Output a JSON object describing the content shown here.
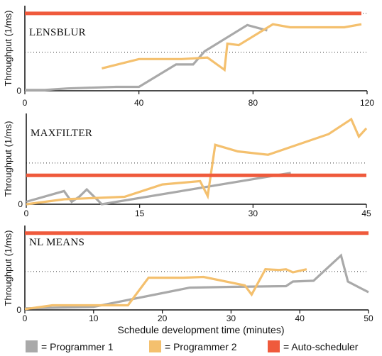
{
  "figure": {
    "xlabel": "Schedule development time (minutes)",
    "legend": [
      {
        "label": "= Programmer 1",
        "color": "#a9a9a9"
      },
      {
        "label": "= Programmer 2",
        "color": "#f4c06e"
      },
      {
        "label": "= Auto-scheduler",
        "color": "#ef5a3c"
      }
    ]
  },
  "chart_data": [
    {
      "type": "line",
      "title": "LENSBLUR",
      "ylabel": "Throughput (1/ms)",
      "xlim": [
        0,
        120
      ],
      "ylim": [
        0,
        1.1
      ],
      "xticks": [
        0,
        40,
        80,
        120
      ],
      "x_tick_labels": [
        "0",
        "40",
        "80",
        "120"
      ],
      "y_gridlines": [
        0.5,
        1.0
      ],
      "series": [
        {
          "name": "Programmer 1",
          "color": "#a9a9a9",
          "x": [
            0,
            7,
            15,
            32,
            40,
            53,
            59,
            63,
            78,
            85
          ],
          "y": [
            0.01,
            0.01,
            0.03,
            0.05,
            0.05,
            0.34,
            0.34,
            0.51,
            0.85,
            0.78
          ]
        },
        {
          "name": "Programmer 2",
          "color": "#f4c06e",
          "x": [
            27,
            40,
            55,
            64,
            70,
            71,
            75,
            87,
            93,
            105,
            112,
            118
          ],
          "y": [
            0.29,
            0.41,
            0.41,
            0.43,
            0.27,
            0.61,
            0.59,
            0.86,
            0.82,
            0.82,
            0.82,
            0.86
          ]
        },
        {
          "name": "Auto-scheduler",
          "color": "#ef5a3c",
          "x": [
            0,
            118
          ],
          "y": [
            1.0,
            1.0
          ]
        }
      ]
    },
    {
      "type": "line",
      "title": "MAXFILTER",
      "ylabel": "Throughput (1/ms)",
      "xlim": [
        0,
        45
      ],
      "ylim": [
        0,
        1.1
      ],
      "xticks": [
        0,
        15,
        30,
        45
      ],
      "x_tick_labels": [
        "0",
        "15",
        "30",
        "45"
      ],
      "y_gridlines": [
        0.5
      ],
      "series": [
        {
          "name": "Programmer 1",
          "color": "#a9a9a9",
          "x": [
            0,
            5,
            6,
            7,
            8,
            10,
            35
          ],
          "y": [
            0.03,
            0.16,
            0.03,
            0.09,
            0.18,
            0.0,
            0.38
          ]
        },
        {
          "name": "Programmer 2",
          "color": "#f4c06e",
          "x": [
            0,
            5,
            13,
            18,
            23,
            24,
            25,
            28,
            32,
            40,
            43,
            44,
            45
          ],
          "y": [
            0.0,
            0.06,
            0.09,
            0.24,
            0.28,
            0.1,
            0.72,
            0.64,
            0.6,
            0.85,
            1.03,
            0.82,
            0.92
          ]
        },
        {
          "name": "Auto-scheduler",
          "color": "#ef5a3c",
          "x": [
            0,
            45
          ],
          "y": [
            0.35,
            0.35
          ]
        }
      ]
    },
    {
      "type": "line",
      "title": "NL MEANS",
      "ylabel": "Throughput (1/ms)",
      "xlim": [
        0,
        50
      ],
      "ylim": [
        0,
        1.1
      ],
      "xticks": [
        0,
        10,
        20,
        30,
        40,
        50
      ],
      "x_tick_labels": [
        "0",
        "10",
        "20",
        "30",
        "40",
        "50"
      ],
      "y_gridlines": [
        0.5
      ],
      "series": [
        {
          "name": "Programmer 1",
          "color": "#a9a9a9",
          "x": [
            0,
            10,
            24,
            30,
            38,
            39,
            42,
            46,
            47,
            50
          ],
          "y": [
            0.02,
            0.04,
            0.29,
            0.3,
            0.31,
            0.37,
            0.38,
            0.71,
            0.37,
            0.23
          ]
        },
        {
          "name": "Programmer 2",
          "color": "#f4c06e",
          "x": [
            0,
            4,
            15,
            18,
            23,
            26,
            32,
            33,
            35,
            37,
            38,
            39,
            41
          ],
          "y": [
            0.01,
            0.06,
            0.06,
            0.42,
            0.42,
            0.43,
            0.32,
            0.2,
            0.53,
            0.52,
            0.53,
            0.49,
            0.53
          ]
        },
        {
          "name": "Auto-scheduler",
          "color": "#ef5a3c",
          "x": [
            0,
            50
          ],
          "y": [
            1.0,
            1.0
          ]
        }
      ]
    }
  ]
}
